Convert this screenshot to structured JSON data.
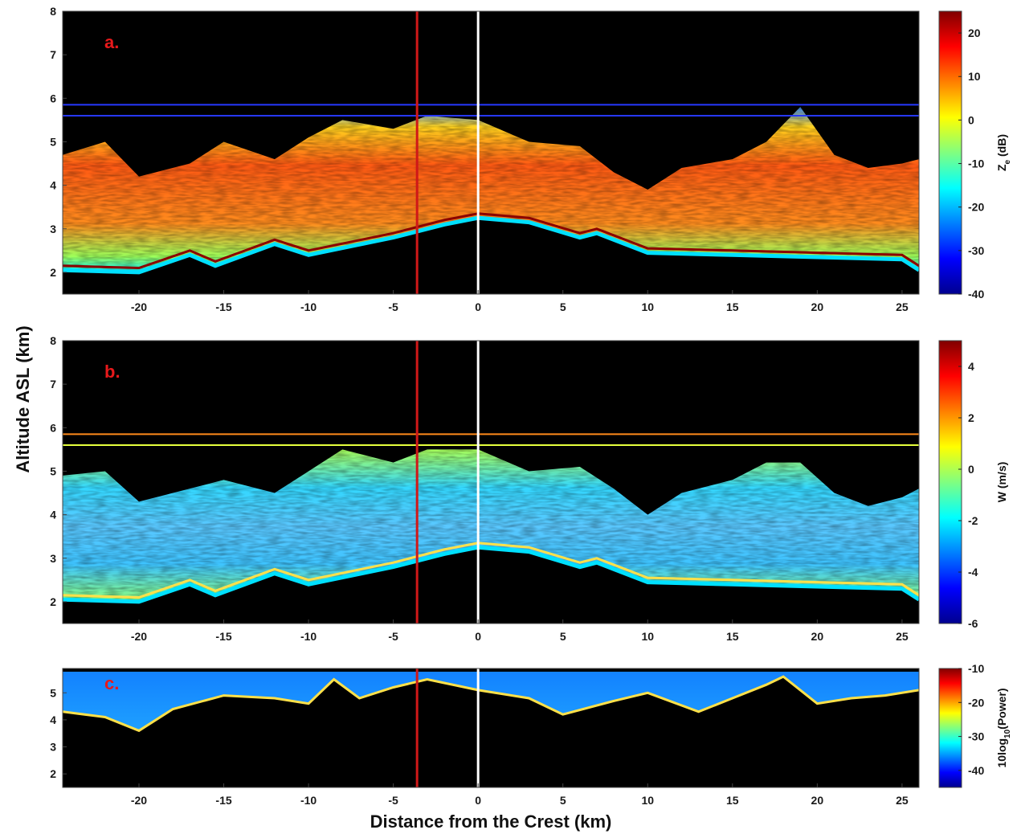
{
  "figure": {
    "ylabel": "Altitude ASL (km)",
    "xlabel": "Distance from the Crest (km)"
  },
  "colors": {
    "background": "#000000",
    "white_line": "#ffffff",
    "red_line": "#d01818",
    "panel_label": "#e8191b",
    "colormap": "jet"
  },
  "chart_data": [
    {
      "type": "heatmap",
      "panel_label": "a.",
      "xlim": [
        -24.5,
        26
      ],
      "ylim": [
        1.5,
        8
      ],
      "x_ticks": [
        -20,
        -15,
        -10,
        -5,
        0,
        5,
        10,
        15,
        20,
        25
      ],
      "y_ticks": [
        2,
        3,
        4,
        5,
        6,
        7,
        8
      ],
      "vertical_lines": [
        {
          "x": -3.6,
          "color": "red"
        },
        {
          "x": 0,
          "color": "white"
        }
      ],
      "horizontal_lines": [
        5.85,
        5.6
      ],
      "colorbar": {
        "label_main": "Z",
        "label_sub": "e",
        "label_tail": " (dB)",
        "ticks": [
          20,
          10,
          0,
          -10,
          -20,
          -30,
          -40
        ],
        "range": [
          -40,
          25
        ]
      },
      "ground_altitude": {
        "x": [
          -24.5,
          -20,
          -17,
          -15.5,
          -12,
          -10,
          -5,
          -2,
          0,
          3,
          6,
          7,
          10,
          15,
          20,
          25,
          26
        ],
        "y": [
          2.15,
          2.1,
          2.5,
          2.25,
          2.75,
          2.5,
          2.9,
          3.2,
          3.35,
          3.25,
          2.9,
          3.0,
          2.55,
          2.5,
          2.45,
          2.4,
          2.15
        ]
      },
      "cloud_top": {
        "x": [
          -24.5,
          -22,
          -20,
          -17,
          -15,
          -12,
          -10,
          -8,
          -5,
          -3,
          0,
          3,
          6,
          8,
          10,
          12,
          15,
          17,
          19,
          21,
          23,
          25,
          26
        ],
        "y": [
          4.7,
          5.0,
          4.2,
          4.5,
          5.0,
          4.6,
          5.1,
          5.5,
          5.3,
          5.6,
          5.5,
          5.0,
          4.9,
          4.3,
          3.9,
          4.4,
          4.6,
          5.0,
          5.8,
          4.7,
          4.4,
          4.5,
          4.6
        ]
      }
    },
    {
      "type": "heatmap",
      "panel_label": "b.",
      "xlim": [
        -24.5,
        26
      ],
      "ylim": [
        1.5,
        8
      ],
      "x_ticks": [
        -20,
        -15,
        -10,
        -5,
        0,
        5,
        10,
        15,
        20,
        25
      ],
      "y_ticks": [
        2,
        3,
        4,
        5,
        6,
        7,
        8
      ],
      "vertical_lines": [
        {
          "x": -3.6,
          "color": "red"
        },
        {
          "x": 0,
          "color": "white"
        }
      ],
      "horizontal_lines": [
        5.85,
        5.6
      ],
      "colorbar": {
        "label_main": "W (m/s)",
        "label_sub": "",
        "label_tail": "",
        "ticks": [
          4,
          2,
          0,
          -2,
          -4,
          -6
        ],
        "range": [
          -6,
          5
        ]
      },
      "ground_altitude": {
        "x": [
          -24.5,
          -20,
          -17,
          -15.5,
          -12,
          -10,
          -5,
          -2,
          0,
          3,
          6,
          7,
          10,
          15,
          20,
          25,
          26
        ],
        "y": [
          2.15,
          2.1,
          2.5,
          2.25,
          2.75,
          2.5,
          2.9,
          3.2,
          3.35,
          3.25,
          2.9,
          3.0,
          2.55,
          2.5,
          2.45,
          2.4,
          2.15
        ]
      },
      "cloud_top": {
        "x": [
          -24.5,
          -22,
          -20,
          -17,
          -15,
          -12,
          -10,
          -8,
          -5,
          -3,
          0,
          3,
          6,
          8,
          10,
          12,
          15,
          17,
          19,
          21,
          23,
          25,
          26
        ],
        "y": [
          4.9,
          5.0,
          4.3,
          4.6,
          4.8,
          4.5,
          5.0,
          5.5,
          5.2,
          5.5,
          5.5,
          5.0,
          5.1,
          4.6,
          4.0,
          4.5,
          4.8,
          5.2,
          5.2,
          4.5,
          4.2,
          4.4,
          4.6
        ]
      }
    },
    {
      "type": "heatmap",
      "panel_label": "c.",
      "xlim": [
        -24.5,
        26
      ],
      "ylim": [
        1.5,
        5.9
      ],
      "x_ticks": [
        -20,
        -15,
        -10,
        -5,
        0,
        5,
        10,
        15,
        20,
        25
      ],
      "y_ticks": [
        2,
        3,
        4,
        5
      ],
      "vertical_lines": [
        {
          "x": -3.6,
          "color": "red"
        },
        {
          "x": 0,
          "color": "white"
        }
      ],
      "colorbar": {
        "label_main": "10log",
        "label_sub": "10",
        "label_tail": "(Power)",
        "ticks": [
          -10,
          -20,
          -30,
          -40
        ],
        "range": [
          -45,
          -10
        ]
      },
      "signal_edge": {
        "x": [
          -24.5,
          -22,
          -20,
          -18,
          -15,
          -12,
          -10,
          -8.5,
          -7,
          -5,
          -3,
          0,
          3,
          5,
          8,
          10,
          13,
          15,
          17,
          18,
          20,
          22,
          24,
          26
        ],
        "y": [
          4.3,
          4.1,
          3.6,
          4.4,
          4.9,
          4.8,
          4.6,
          5.5,
          4.8,
          5.2,
          5.5,
          5.1,
          4.8,
          4.2,
          4.7,
          5.0,
          4.3,
          4.8,
          5.3,
          5.6,
          4.6,
          4.8,
          4.9,
          5.1
        ]
      }
    }
  ]
}
